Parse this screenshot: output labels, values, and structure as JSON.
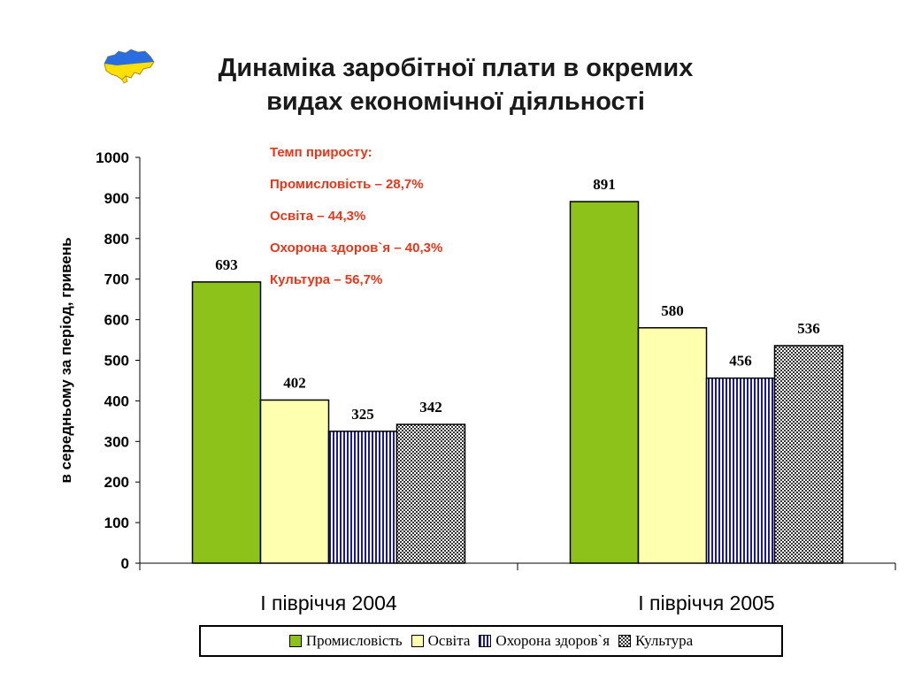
{
  "title_line1": "Динаміка заробітної плати в окремих",
  "title_line2": "видах економічної діяльності",
  "annotation": {
    "heading": "Темп приросту:",
    "lines": [
      "Промисловість – 28,7%",
      "Освіта – 44,3%",
      "Охорона здоров`я – 40,3%",
      "Культура – 56,7%"
    ]
  },
  "colors": {
    "industry": "#8cc21a",
    "education": "#ffffb0",
    "health": "#1a1a99",
    "culture": "#333333",
    "annotation_text": "#e8361a"
  },
  "chart_data": {
    "type": "bar",
    "title": "Динаміка заробітної плати в окремих видах економічної діяльності",
    "ylabel": "в середньому за період, гривень",
    "xlabel": "",
    "categories": [
      "І півріччя 2004",
      "І півріччя 2005"
    ],
    "ylim": [
      0,
      1000
    ],
    "yticks": [
      0,
      100,
      200,
      300,
      400,
      500,
      600,
      700,
      800,
      900,
      1000
    ],
    "legend_position": "bottom",
    "grid": false,
    "series": [
      {
        "name": "Промисловість",
        "values": [
          693,
          891
        ]
      },
      {
        "name": "Освіта",
        "values": [
          402,
          580
        ]
      },
      {
        "name": "Охорона здоров`я",
        "values": [
          325,
          456
        ]
      },
      {
        "name": "Культура",
        "values": [
          342,
          536
        ]
      }
    ]
  }
}
